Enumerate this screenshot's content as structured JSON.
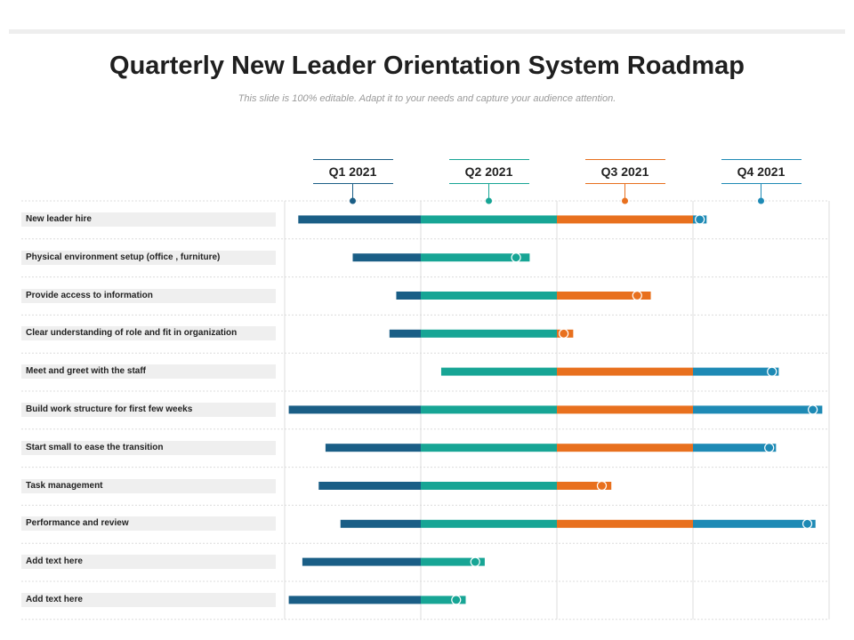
{
  "title": "Quarterly New Leader Orientation System Roadmap",
  "subtitle": "This slide is 100% editable. Adapt it to your needs and capture your audience attention.",
  "quarters": [
    {
      "label": "Q1 2021",
      "color": "#1a5e86"
    },
    {
      "label": "Q2 2021",
      "color": "#17a595"
    },
    {
      "label": "Q3 2021",
      "color": "#e8701e"
    },
    {
      "label": "Q4 2021",
      "color": "#1e8ab5"
    }
  ],
  "chart_data": {
    "type": "gantt",
    "x_unit": "quarters",
    "x_range": [
      0,
      4
    ],
    "tasks": [
      {
        "label": "New leader hire",
        "start": 0.1,
        "end": 3.1,
        "milestone": 3.05
      },
      {
        "label": "Physical environment setup (office , furniture)",
        "start": 0.5,
        "end": 1.8,
        "milestone": 1.7
      },
      {
        "label": "Provide access to information",
        "start": 0.82,
        "end": 2.69,
        "milestone": 2.59
      },
      {
        "label": "Clear understanding of role and fit in organization",
        "start": 0.77,
        "end": 2.12,
        "milestone": 2.05
      },
      {
        "label": "Meet and greet with the staff",
        "start": 1.15,
        "end": 3.63,
        "milestone": 3.58
      },
      {
        "label": "Build work structure for first few weeks",
        "start": 0.03,
        "end": 3.95,
        "milestone": 3.88
      },
      {
        "label": "Start small to ease the transition",
        "start": 0.3,
        "end": 3.61,
        "milestone": 3.56
      },
      {
        "label": "Task management",
        "start": 0.25,
        "end": 2.4,
        "milestone": 2.33
      },
      {
        "label": "Performance and review",
        "start": 0.41,
        "end": 3.9,
        "milestone": 3.84
      },
      {
        "label": "Add text here",
        "start": 0.13,
        "end": 1.47,
        "milestone": 1.4
      },
      {
        "label": "Add text here",
        "start": 0.03,
        "end": 1.33,
        "milestone": 1.26
      }
    ]
  }
}
